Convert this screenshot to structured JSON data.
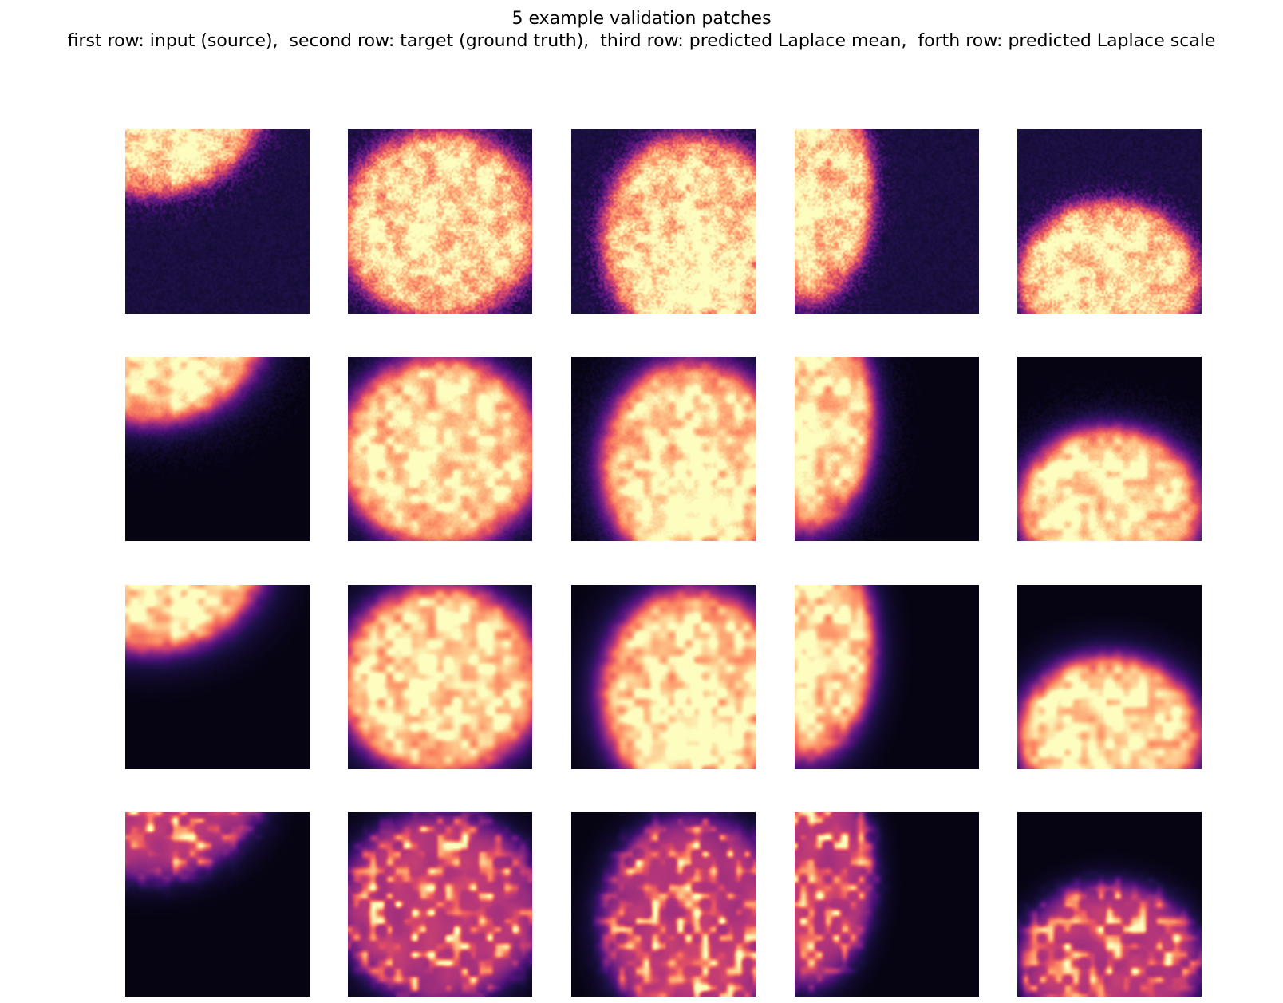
{
  "figure": {
    "title_line_1": "5 example validation patches",
    "title_line_2": "first row: input (source),  second row: target (ground truth),  third row: predicted Laplace mean,  forth row: predicted Laplace scale",
    "colormap": "magma",
    "columns": 5,
    "rows": [
      {
        "name": "input (source)",
        "style": "noisy"
      },
      {
        "name": "target (ground truth)",
        "style": "clean"
      },
      {
        "name": "predicted Laplace mean",
        "style": "smooth"
      },
      {
        "name": "predicted Laplace scale",
        "style": "blobs"
      }
    ],
    "patch_content": [
      "nucleus-top-left-corner",
      "nucleus-centered",
      "nucleus-right-offset",
      "nucleus-left-edge",
      "nucleus-bottom-center"
    ]
  }
}
